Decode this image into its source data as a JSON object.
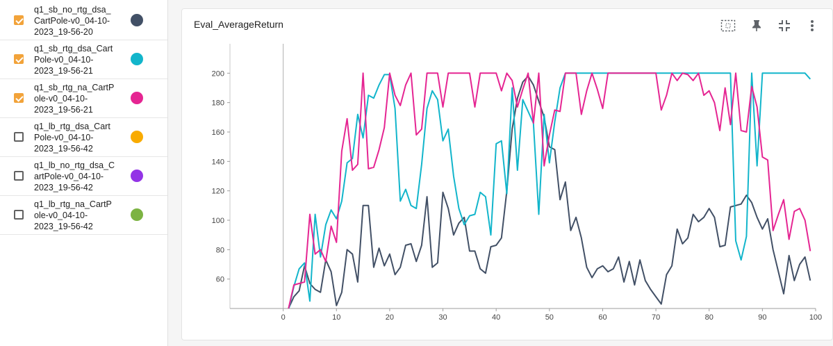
{
  "runs": [
    {
      "label": "q1_sb_no_rtg_dsa_\nCartPole-v0_04-10-\n2023_19-56-20",
      "checked": true,
      "color": "#425066"
    },
    {
      "label": "q1_sb_rtg_dsa_Cart\nPole-v0_04-10-\n2023_19-56-21",
      "checked": true,
      "color": "#12b5cb"
    },
    {
      "label": "q1_sb_rtg_na_CartP\nole-v0_04-10-\n2023_19-56-21",
      "checked": true,
      "color": "#e52592"
    },
    {
      "label": "q1_lb_rtg_dsa_Cart\nPole-v0_04-10-\n2023_19-56-42",
      "checked": false,
      "color": "#f9ab00"
    },
    {
      "label": "q1_lb_no_rtg_dsa_C\nartPole-v0_04-10-\n2023_19-56-42",
      "checked": false,
      "color": "#9334e6"
    },
    {
      "label": "q1_lb_rtg_na_CartP\nole-v0_04-10-\n2023_19-56-42",
      "checked": false,
      "color": "#7cb342"
    }
  ],
  "card": {
    "title": "Eval_AverageReturn",
    "icons": [
      "fit-domain-icon",
      "pin-icon",
      "collapse-icon",
      "more-vert-icon"
    ]
  },
  "chart_data": {
    "type": "line",
    "title": "Eval_AverageReturn",
    "xlabel": "",
    "ylabel": "",
    "xlim": [
      -10,
      100
    ],
    "ylim": [
      40,
      220
    ],
    "x_ticks": [
      "0",
      "10",
      "20",
      "30",
      "40",
      "50",
      "60",
      "70",
      "80",
      "90",
      "100"
    ],
    "y_ticks": [
      "60",
      "80",
      "100",
      "120",
      "140",
      "160",
      "180",
      "200"
    ],
    "grid": false,
    "series": [
      {
        "name": "q1_sb_no_rtg_dsa_CartPole-v0_04-10-2023_19-56-20",
        "color": "#425066",
        "values": [
          35,
          40,
          48,
          52,
          69,
          57,
          53,
          51,
          73,
          65,
          42,
          51,
          80,
          77,
          58,
          110,
          110,
          68,
          81,
          69,
          77,
          63,
          68,
          83,
          84,
          72,
          83,
          116,
          68,
          71,
          119,
          108,
          90,
          98,
          102,
          79,
          79,
          67,
          64,
          82,
          83,
          88,
          120,
          162,
          183,
          194,
          198,
          192,
          181,
          170,
          150,
          148,
          114,
          126,
          93,
          102,
          88,
          68,
          61,
          67,
          69,
          65,
          67,
          75,
          58,
          72,
          56,
          73,
          59,
          53,
          48,
          43,
          63,
          69,
          94,
          84,
          88,
          104,
          99,
          102,
          108,
          102,
          82,
          83,
          109,
          110,
          111,
          117,
          112,
          102,
          94,
          101,
          80,
          65,
          50,
          76,
          59,
          70,
          75,
          59
        ]
      },
      {
        "name": "q1_sb_rtg_dsa_CartPole-v0_04-10-2023_19-56-21",
        "color": "#12b5cb",
        "values": [
          35,
          39,
          55,
          67,
          71,
          45,
          104,
          75,
          97,
          107,
          101,
          113,
          139,
          142,
          172,
          156,
          185,
          183,
          192,
          199,
          199,
          176,
          113,
          121,
          110,
          108,
          138,
          176,
          188,
          182,
          154,
          162,
          130,
          108,
          97,
          103,
          104,
          119,
          116,
          90,
          152,
          154,
          118,
          190,
          134,
          182,
          174,
          166,
          104,
          172,
          139,
          167,
          190,
          200,
          200,
          200,
          200,
          200,
          200,
          200,
          200,
          200,
          200,
          200,
          200,
          200,
          200,
          200,
          200,
          200,
          200,
          200,
          200,
          200,
          200,
          200,
          200,
          200,
          200,
          200,
          200,
          200,
          200,
          200,
          200,
          86,
          73,
          89,
          200,
          137,
          200,
          200,
          200,
          200,
          200,
          200,
          200,
          200,
          200,
          196
        ]
      },
      {
        "name": "q1_sb_rtg_na_CartPole-v0_04-10-2023_19-56-21",
        "color": "#e52592",
        "values": [
          35,
          40,
          56,
          57,
          58,
          104,
          77,
          80,
          72,
          96,
          85,
          147,
          169,
          134,
          138,
          200,
          135,
          136,
          148,
          163,
          200,
          185,
          178,
          192,
          200,
          158,
          162,
          200,
          200,
          200,
          177,
          200,
          200,
          200,
          200,
          200,
          177,
          200,
          200,
          200,
          200,
          188,
          200,
          195,
          177,
          189,
          200,
          166,
          200,
          137,
          158,
          175,
          174,
          200,
          200,
          200,
          172,
          188,
          200,
          189,
          176,
          200,
          200,
          200,
          200,
          200,
          200,
          200,
          200,
          200,
          200,
          175,
          185,
          200,
          195,
          200,
          199,
          195,
          200,
          185,
          188,
          180,
          161,
          190,
          165,
          200,
          161,
          160,
          191,
          177,
          143,
          141,
          93,
          104,
          114,
          87,
          106,
          108,
          100,
          79
        ]
      }
    ]
  }
}
